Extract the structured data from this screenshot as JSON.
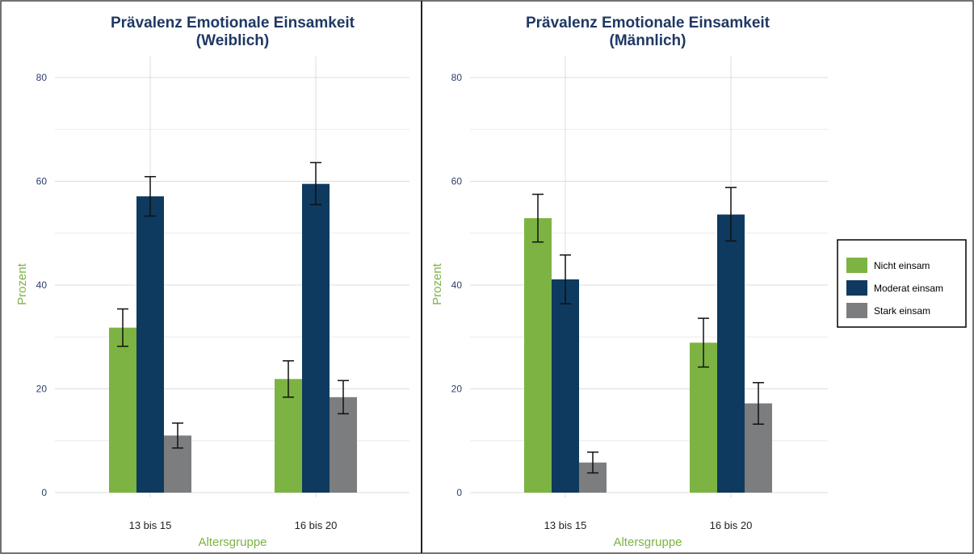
{
  "chart_data": [
    {
      "type": "bar",
      "title_line1": "Prävalenz Emotionale Einsamkeit",
      "title_line2": "(Weiblich)",
      "xlabel": "Altersgruppe",
      "ylabel": "Prozent",
      "ylim": [
        0,
        80
      ],
      "yticks": [
        "0",
        "20",
        "40",
        "60",
        "80"
      ],
      "categories": [
        "13 bis 15",
        "16 bis 20"
      ],
      "series": [
        {
          "name": "Nicht einsam",
          "values": [
            31.8,
            21.9
          ],
          "err_low": [
            28.2,
            18.4
          ],
          "err_high": [
            35.4,
            25.4
          ]
        },
        {
          "name": "Moderat einsam",
          "values": [
            57.1,
            59.5
          ],
          "err_low": [
            53.3,
            55.5
          ],
          "err_high": [
            60.9,
            63.6
          ]
        },
        {
          "name": "Stark einsam",
          "values": [
            11.0,
            18.4
          ],
          "err_low": [
            8.6,
            15.2
          ],
          "err_high": [
            13.4,
            21.6
          ]
        }
      ]
    },
    {
      "type": "bar",
      "title_line1": "Prävalenz Emotionale Einsamkeit",
      "title_line2": "(Männlich)",
      "xlabel": "Altersgruppe",
      "ylabel": "Prozent",
      "ylim": [
        0,
        80
      ],
      "yticks": [
        "0",
        "20",
        "40",
        "60",
        "80"
      ],
      "categories": [
        "13 bis 15",
        "16 bis 20"
      ],
      "series": [
        {
          "name": "Nicht einsam",
          "values": [
            52.9,
            28.9
          ],
          "err_low": [
            48.3,
            24.2
          ],
          "err_high": [
            57.5,
            33.6
          ]
        },
        {
          "name": "Moderat einsam",
          "values": [
            41.1,
            53.6
          ],
          "err_low": [
            36.4,
            48.5
          ],
          "err_high": [
            45.8,
            58.8
          ]
        },
        {
          "name": "Stark einsam",
          "values": [
            5.8,
            17.2
          ],
          "err_low": [
            3.8,
            13.2
          ],
          "err_high": [
            7.8,
            21.2
          ]
        }
      ]
    }
  ],
  "legend": {
    "placement": "right",
    "items": [
      "Nicht einsam",
      "Moderat einsam",
      "Stark einsam"
    ]
  },
  "colors": {
    "nicht_einsam": "#7cb342",
    "moderat_einsam": "#0e3a5f",
    "stark_einsam": "#7b7d7f",
    "title": "#1f3864",
    "axis_label": "#7cb342"
  }
}
